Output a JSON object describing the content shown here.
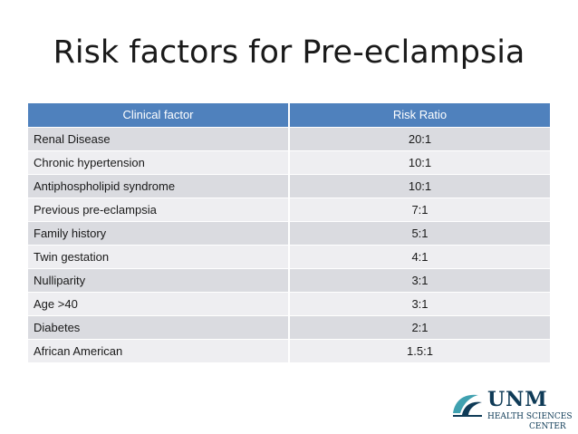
{
  "slide": {
    "title": "Risk factors for Pre-eclampsia"
  },
  "table": {
    "headers": [
      "Clinical factor",
      "Risk Ratio"
    ],
    "rows": [
      {
        "factor": "Renal Disease",
        "ratio": "20:1"
      },
      {
        "factor": "Chronic hypertension",
        "ratio": "10:1"
      },
      {
        "factor": "Antiphospholipid syndrome",
        "ratio": "10:1"
      },
      {
        "factor": "Previous pre-eclampsia",
        "ratio": "7:1"
      },
      {
        "factor": "Family history",
        "ratio": "5:1"
      },
      {
        "factor": "Twin gestation",
        "ratio": "4:1"
      },
      {
        "factor": "Nulliparity",
        "ratio": "3:1"
      },
      {
        "factor": "Age >40",
        "ratio": "3:1"
      },
      {
        "factor": "Diabetes",
        "ratio": "2:1"
      },
      {
        "factor": "African American",
        "ratio": "1.5:1"
      }
    ]
  },
  "logo": {
    "name": "UNM",
    "line1": "HEALTH SCIENCES",
    "line2": "CENTER",
    "icon": "unm-emblem-icon",
    "colors": {
      "navy": "#0f3b57",
      "teal": "#3fa1b0"
    }
  },
  "colors": {
    "header_bg": "#4f81bd",
    "row_odd": "#dadbe0",
    "row_even": "#eeeef1"
  }
}
